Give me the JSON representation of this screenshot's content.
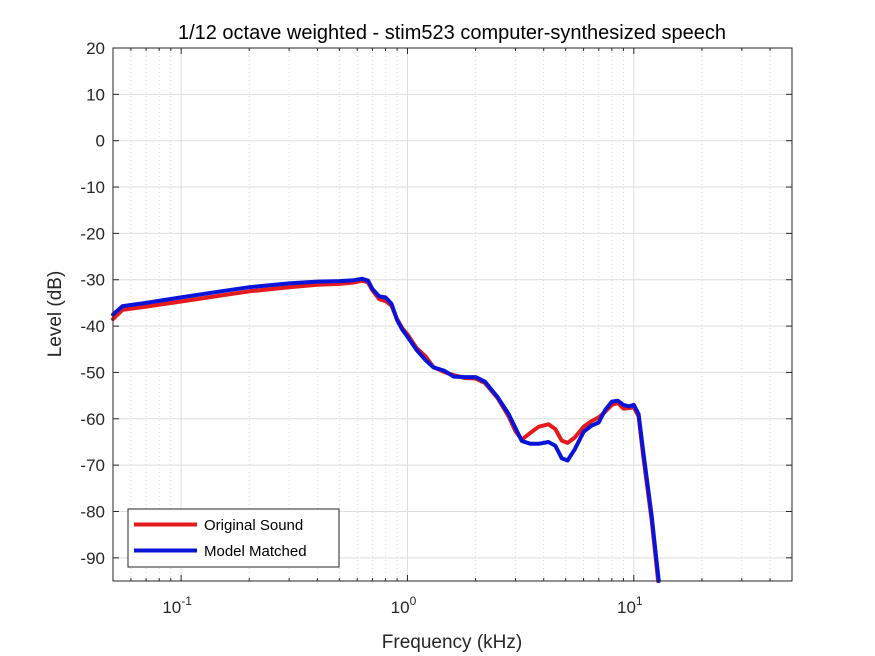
{
  "chart_data": {
    "type": "line",
    "title": "1/12 octave weighted - stim523 computer-synthesized speech",
    "xlabel": "Frequency (kHz)",
    "ylabel": "Level (dB)",
    "xscale": "log",
    "xlim": [
      0.05,
      50
    ],
    "ylim": [
      -95,
      20
    ],
    "grid": true,
    "minor_grid": true,
    "legend_position": "bottom-left",
    "xticks": [
      {
        "value": 0.1,
        "base": "10",
        "exp": "-1"
      },
      {
        "value": 1,
        "base": "10",
        "exp": "0"
      },
      {
        "value": 10,
        "base": "10",
        "exp": "1"
      }
    ],
    "yticks": [
      20,
      10,
      0,
      -10,
      -20,
      -30,
      -40,
      -50,
      -60,
      -70,
      -80,
      -90
    ],
    "series": [
      {
        "name": "Original Sound",
        "color": "#e41a1c",
        "points": [
          [
            0.05,
            -38.5
          ],
          [
            0.055,
            -36.5
          ],
          [
            0.07,
            -35.8
          ],
          [
            0.1,
            -34.7
          ],
          [
            0.15,
            -33.4
          ],
          [
            0.2,
            -32.5
          ],
          [
            0.3,
            -31.6
          ],
          [
            0.4,
            -31.1
          ],
          [
            0.5,
            -30.9
          ],
          [
            0.58,
            -30.6
          ],
          [
            0.63,
            -30.2
          ],
          [
            0.67,
            -30.6
          ],
          [
            0.7,
            -32.3
          ],
          [
            0.75,
            -34.2
          ],
          [
            0.8,
            -34.6
          ],
          [
            0.85,
            -35.6
          ],
          [
            0.9,
            -38.5
          ],
          [
            0.95,
            -40.5
          ],
          [
            1.0,
            -41.8
          ],
          [
            1.1,
            -44.8
          ],
          [
            1.2,
            -46.5
          ],
          [
            1.3,
            -48.8
          ],
          [
            1.45,
            -49.9
          ],
          [
            1.6,
            -50.6
          ],
          [
            1.8,
            -51.2
          ],
          [
            2.0,
            -51.3
          ],
          [
            2.2,
            -52.3
          ],
          [
            2.5,
            -55.5
          ],
          [
            2.8,
            -59.5
          ],
          [
            3.0,
            -62.7
          ],
          [
            3.2,
            -64.5
          ],
          [
            3.5,
            -63.0
          ],
          [
            3.8,
            -61.7
          ],
          [
            4.2,
            -61.2
          ],
          [
            4.5,
            -62.2
          ],
          [
            4.8,
            -64.7
          ],
          [
            5.1,
            -65.2
          ],
          [
            5.5,
            -64.0
          ],
          [
            6.0,
            -61.7
          ],
          [
            6.5,
            -60.5
          ],
          [
            7.0,
            -59.7
          ],
          [
            7.5,
            -58.4
          ],
          [
            8.0,
            -57.0
          ],
          [
            8.5,
            -56.6
          ],
          [
            9.0,
            -57.8
          ],
          [
            9.5,
            -57.7
          ],
          [
            10.0,
            -57.5
          ],
          [
            10.5,
            -59.5
          ],
          [
            11.0,
            -68.0
          ],
          [
            12.0,
            -82.0
          ],
          [
            12.5,
            -90.0
          ],
          [
            12.8,
            -95.0
          ]
        ]
      },
      {
        "name": "Model Matched",
        "color": "#0a14d8",
        "points": [
          [
            0.05,
            -37.5
          ],
          [
            0.055,
            -35.7
          ],
          [
            0.07,
            -35.0
          ],
          [
            0.1,
            -33.8
          ],
          [
            0.15,
            -32.5
          ],
          [
            0.2,
            -31.6
          ],
          [
            0.3,
            -30.8
          ],
          [
            0.4,
            -30.4
          ],
          [
            0.5,
            -30.3
          ],
          [
            0.58,
            -30.1
          ],
          [
            0.63,
            -29.8
          ],
          [
            0.67,
            -30.2
          ],
          [
            0.7,
            -32.0
          ],
          [
            0.75,
            -33.6
          ],
          [
            0.8,
            -33.8
          ],
          [
            0.85,
            -35.2
          ],
          [
            0.9,
            -38.7
          ],
          [
            0.95,
            -40.8
          ],
          [
            1.0,
            -42.3
          ],
          [
            1.1,
            -45.2
          ],
          [
            1.2,
            -47.3
          ],
          [
            1.3,
            -48.9
          ],
          [
            1.45,
            -49.6
          ],
          [
            1.6,
            -50.9
          ],
          [
            1.8,
            -51.0
          ],
          [
            2.0,
            -51.0
          ],
          [
            2.2,
            -52.0
          ],
          [
            2.5,
            -55.3
          ],
          [
            2.8,
            -59.0
          ],
          [
            3.0,
            -62.0
          ],
          [
            3.2,
            -64.8
          ],
          [
            3.5,
            -65.4
          ],
          [
            3.8,
            -65.4
          ],
          [
            4.2,
            -65.0
          ],
          [
            4.5,
            -65.8
          ],
          [
            4.8,
            -68.5
          ],
          [
            5.1,
            -69.0
          ],
          [
            5.5,
            -66.5
          ],
          [
            6.0,
            -62.8
          ],
          [
            6.5,
            -61.5
          ],
          [
            7.0,
            -60.8
          ],
          [
            7.5,
            -58.0
          ],
          [
            8.0,
            -56.3
          ],
          [
            8.5,
            -56.1
          ],
          [
            9.0,
            -57.0
          ],
          [
            9.5,
            -57.3
          ],
          [
            10.0,
            -57.0
          ],
          [
            10.5,
            -59.0
          ],
          [
            11.0,
            -67.0
          ],
          [
            12.0,
            -81.0
          ],
          [
            12.5,
            -89.0
          ],
          [
            12.9,
            -95.0
          ]
        ]
      }
    ]
  }
}
